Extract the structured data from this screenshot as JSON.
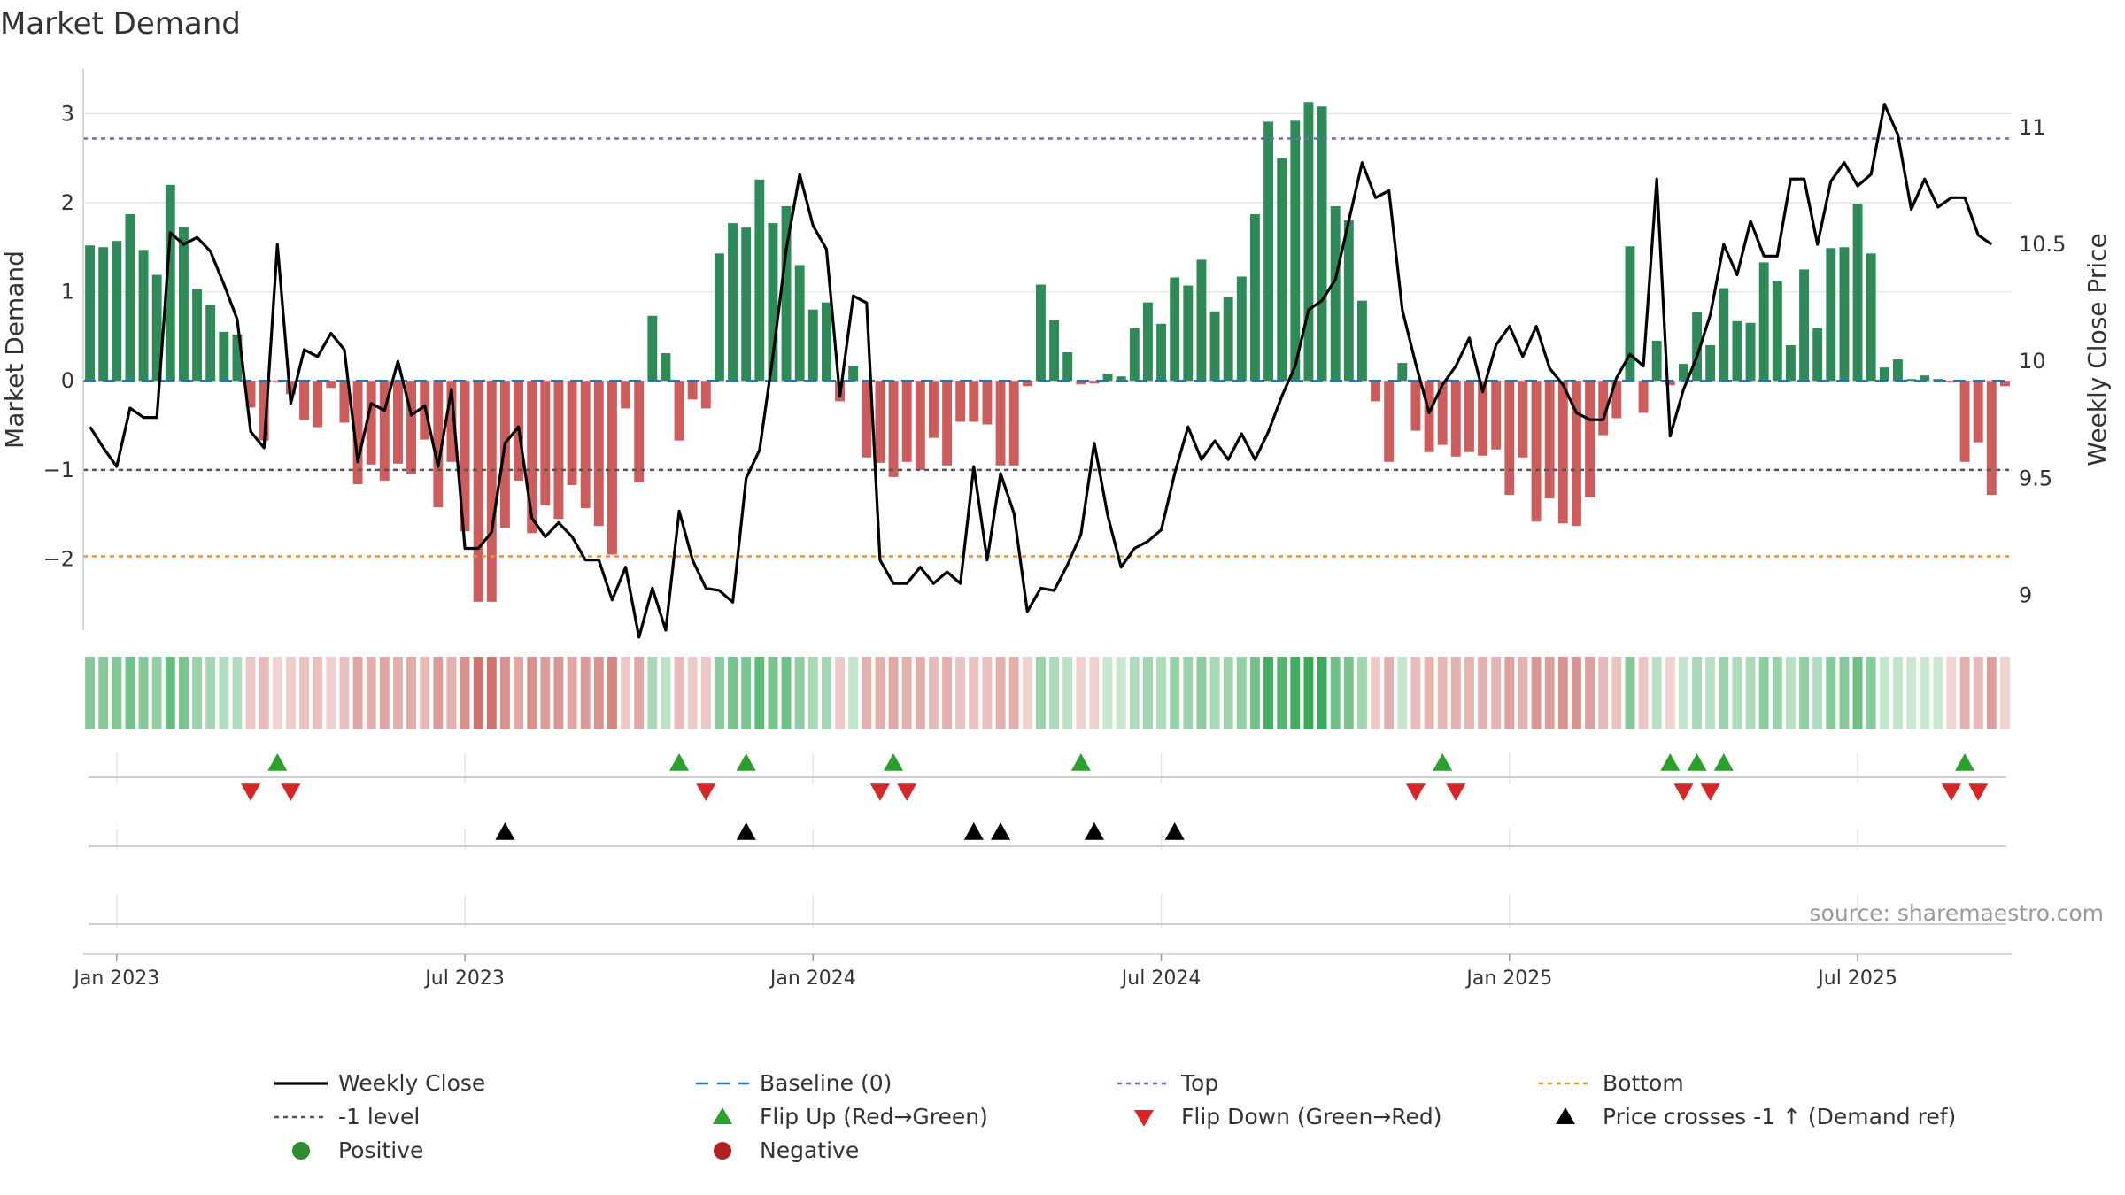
{
  "chart_data": {
    "type": "bar",
    "title": "Market Demand",
    "ylabel_left": "Market Demand",
    "ylabel_right": "Weekly Close Price",
    "source": "source: sharemaestro.com",
    "ylim_left": [
      -2.8,
      3.5
    ],
    "ylim_right": [
      8.85,
      11.25
    ],
    "yticks_left": [
      {
        "value": 3,
        "label": "3"
      },
      {
        "value": 2,
        "label": "2"
      },
      {
        "value": 1,
        "label": "1"
      },
      {
        "value": 0,
        "label": "0"
      },
      {
        "value": -1,
        "label": "−1"
      },
      {
        "value": -2,
        "label": "−2"
      }
    ],
    "yticks_right": [
      {
        "value": 11,
        "label": "11"
      },
      {
        "value": 10.5,
        "label": "10.5"
      },
      {
        "value": 10,
        "label": "10"
      },
      {
        "value": 9.5,
        "label": "9.5"
      },
      {
        "value": 9,
        "label": "9"
      }
    ],
    "xticks": [
      {
        "index": 2,
        "label": "Jan 2023"
      },
      {
        "index": 28,
        "label": "Jul 2023"
      },
      {
        "index": 54,
        "label": "Jan 2024"
      },
      {
        "index": 80,
        "label": "Jul 2024"
      },
      {
        "index": 106,
        "label": "Jan 2025"
      },
      {
        "index": 132,
        "label": "Jul 2025"
      }
    ],
    "reference_lines": {
      "top": 2.72,
      "minus_one": -1,
      "bottom": -1.97,
      "baseline": 0
    },
    "demand": [
      1.52,
      1.5,
      1.57,
      1.87,
      1.47,
      1.19,
      2.2,
      1.73,
      1.03,
      0.85,
      0.55,
      0.52,
      -0.3,
      -0.67,
      -0.02,
      -0.15,
      -0.44,
      -0.52,
      -0.08,
      -0.47,
      -1.16,
      -0.94,
      -1.12,
      -0.93,
      -1.05,
      -0.66,
      -1.42,
      -0.91,
      -1.69,
      -2.48,
      -2.48,
      -1.65,
      -1.12,
      -1.71,
      -1.4,
      -1.55,
      -1.17,
      -1.43,
      -1.63,
      -1.95,
      -0.31,
      -1.14,
      0.73,
      0.31,
      -0.67,
      -0.21,
      -0.31,
      1.43,
      1.77,
      1.72,
      2.26,
      1.77,
      1.96,
      1.3,
      0.8,
      0.88,
      -0.23,
      0.17,
      -0.86,
      -0.92,
      -1.08,
      -0.91,
      -1.0,
      -0.64,
      -0.95,
      -0.46,
      -0.46,
      -0.49,
      -0.95,
      -0.95,
      -0.06,
      1.08,
      0.68,
      0.32,
      -0.04,
      -0.03,
      0.08,
      0.05,
      0.59,
      0.88,
      0.64,
      1.16,
      1.07,
      1.36,
      0.78,
      0.94,
      1.17,
      1.87,
      2.91,
      2.5,
      2.92,
      3.13,
      3.08,
      1.96,
      1.8,
      0.9,
      -0.23,
      -0.91,
      0.2,
      -0.56,
      -0.8,
      -0.72,
      -0.85,
      -0.8,
      -0.84,
      -0.77,
      -1.28,
      -0.86,
      -1.58,
      -1.32,
      -1.6,
      -1.63,
      -1.31,
      -0.61,
      -0.42,
      1.51,
      -0.36,
      0.45,
      -0.05,
      0.19,
      0.77,
      0.4,
      1.04,
      0.67,
      0.65,
      1.33,
      1.12,
      0.4,
      1.25,
      0.59,
      1.49,
      1.5,
      1.99,
      1.43,
      0.15,
      0.24,
      0.02,
      0.06,
      0.02,
      -0.02,
      -0.91,
      -0.69,
      -1.28,
      -0.06
    ],
    "price": [
      9.72,
      9.63,
      9.55,
      9.8,
      9.76,
      9.76,
      10.55,
      10.5,
      10.53,
      10.47,
      10.33,
      10.18,
      9.7,
      9.63,
      10.5,
      9.82,
      10.05,
      10.02,
      10.12,
      10.05,
      9.57,
      9.82,
      9.79,
      10.0,
      9.77,
      9.81,
      9.55,
      9.88,
      9.2,
      9.2,
      9.27,
      9.65,
      9.72,
      9.33,
      9.25,
      9.31,
      9.25,
      9.15,
      9.15,
      8.98,
      9.12,
      8.82,
      9.03,
      8.85,
      9.36,
      9.15,
      9.03,
      9.02,
      8.97,
      9.5,
      9.62,
      10.02,
      10.48,
      10.8,
      10.58,
      10.48,
      9.85,
      10.28,
      10.25,
      9.15,
      9.05,
      9.05,
      9.12,
      9.05,
      9.1,
      9.05,
      9.55,
      9.15,
      9.52,
      9.35,
      8.93,
      9.03,
      9.02,
      9.13,
      9.26,
      9.65,
      9.34,
      9.12,
      9.2,
      9.23,
      9.28,
      9.52,
      9.72,
      9.58,
      9.66,
      9.58,
      9.69,
      9.58,
      9.7,
      9.85,
      9.98,
      10.22,
      10.26,
      10.35,
      10.6,
      10.85,
      10.7,
      10.73,
      10.22,
      9.99,
      9.78,
      9.9,
      9.98,
      10.1,
      9.87,
      10.07,
      10.15,
      10.02,
      10.15,
      9.97,
      9.9,
      9.78,
      9.75,
      9.75,
      9.93,
      10.03,
      9.98,
      10.78,
      9.68,
      9.88,
      10.02,
      10.2,
      10.5,
      10.37,
      10.6,
      10.45,
      10.45,
      10.78,
      10.78,
      10.5,
      10.77,
      10.85,
      10.75,
      10.8,
      11.1,
      10.97,
      10.65,
      10.78,
      10.66,
      10.7,
      10.7,
      10.54,
      10.5
    ],
    "flip_up_idx": [
      14,
      44,
      49,
      60,
      74,
      101,
      118,
      120,
      122,
      140
    ],
    "flip_down_idx": [
      12,
      15,
      46,
      59,
      61,
      99,
      102,
      119,
      121,
      139,
      141
    ],
    "price_cross_idx": [
      31,
      49,
      66,
      68,
      75,
      81
    ],
    "x_range": [
      -0.5,
      143.5
    ],
    "colors": {
      "positive_bar": "#2e8b57",
      "negative_bar": "#cd5c5c",
      "price_line": "#000000",
      "top_line": "#6a6ac8",
      "bottom_line": "#e8962c",
      "minus_one_line": "#555555",
      "baseline": "#1f77b4",
      "flip_up": "#2ca02c",
      "flip_down": "#d62728",
      "price_cross": "#000000",
      "strip_pos": "#2ea44f",
      "strip_neg": "#c2504a"
    },
    "legend": [
      {
        "label": "Weekly Close",
        "symbol": "line",
        "color": "#000000"
      },
      {
        "label": "Baseline (0)",
        "symbol": "dash",
        "color": "#1f77b4"
      },
      {
        "label": "Top",
        "symbol": "dot",
        "color": "#6a6ac8"
      },
      {
        "label": "Bottom",
        "symbol": "dot",
        "color": "#e8962c"
      },
      {
        "label": "-1 level",
        "symbol": "dot",
        "color": "#555555"
      },
      {
        "label": "Flip Up (Red→Green)",
        "symbol": "tri-up",
        "color": "#2ca02c"
      },
      {
        "label": "Flip Down (Green→Red)",
        "symbol": "tri-down",
        "color": "#d62728"
      },
      {
        "label": "Price crosses -1 ↑ (Demand ref)",
        "symbol": "tri-up",
        "color": "#000000"
      },
      {
        "label": "Positive",
        "symbol": "circle",
        "color": "#2e8b2e"
      },
      {
        "label": "Negative",
        "symbol": "circle",
        "color": "#b22222"
      }
    ]
  }
}
